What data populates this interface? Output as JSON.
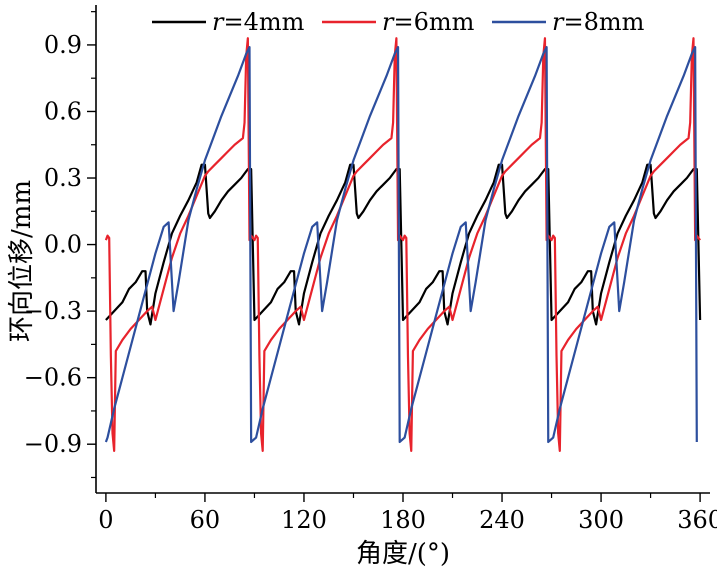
{
  "chart_data": {
    "type": "line",
    "xlabel": "角度/(°)",
    "ylabel": "环向位移/mm",
    "xlim": [
      -6,
      366
    ],
    "ylim": [
      -1.12,
      1.08
    ],
    "x_ticks": [
      0,
      60,
      120,
      180,
      240,
      300,
      360
    ],
    "x_tick_labels": [
      "0",
      "60",
      "120",
      "180",
      "240",
      "300",
      "360"
    ],
    "y_ticks": [
      -0.9,
      -0.6,
      -0.3,
      0.0,
      0.3,
      0.6,
      0.9
    ],
    "y_tick_labels": [
      "−0.9",
      "−0.6",
      "−0.3",
      "0.0",
      "0.3",
      "0.6",
      "0.9"
    ],
    "grid": false,
    "legend_position": "top",
    "period_deg": 90,
    "series": [
      {
        "name": "r=4mm",
        "legend_prefix": "r",
        "legend_suffix": "=4mm",
        "color": "#000000",
        "cycle": [
          [
            0,
            -0.34
          ],
          [
            5,
            -0.3
          ],
          [
            10,
            -0.26
          ],
          [
            14,
            -0.2
          ],
          [
            18,
            -0.17
          ],
          [
            22,
            -0.12
          ],
          [
            24,
            -0.12
          ],
          [
            25,
            -0.3
          ],
          [
            27,
            -0.36
          ],
          [
            30,
            -0.22
          ],
          [
            35,
            -0.08
          ],
          [
            40,
            0.05
          ],
          [
            45,
            0.13
          ],
          [
            50,
            0.2
          ],
          [
            55,
            0.28
          ],
          [
            58,
            0.36
          ],
          [
            60,
            0.36
          ],
          [
            61,
            0.25
          ],
          [
            62,
            0.14
          ],
          [
            63,
            0.12
          ],
          [
            66,
            0.15
          ],
          [
            70,
            0.2
          ],
          [
            74,
            0.24
          ],
          [
            78,
            0.27
          ],
          [
            82,
            0.3
          ],
          [
            86,
            0.34
          ],
          [
            88,
            0.34
          ],
          [
            90,
            -0.34
          ]
        ]
      },
      {
        "name": "r=6mm",
        "legend_prefix": "r",
        "legend_suffix": "=6mm",
        "color": "#e8232c",
        "cycle": [
          [
            0,
            0.02
          ],
          [
            1,
            0.04
          ],
          [
            2,
            0.03
          ],
          [
            3,
            -0.5
          ],
          [
            4,
            -0.85
          ],
          [
            5,
            -0.93
          ],
          [
            6,
            -0.48
          ],
          [
            10,
            -0.43
          ],
          [
            15,
            -0.38
          ],
          [
            20,
            -0.34
          ],
          [
            25,
            -0.3
          ],
          [
            28,
            -0.28
          ],
          [
            30,
            -0.34
          ],
          [
            35,
            -0.2
          ],
          [
            40,
            -0.06
          ],
          [
            45,
            0.05
          ],
          [
            50,
            0.13
          ],
          [
            55,
            0.22
          ],
          [
            60,
            0.31
          ],
          [
            62,
            0.33
          ],
          [
            66,
            0.36
          ],
          [
            70,
            0.39
          ],
          [
            74,
            0.42
          ],
          [
            78,
            0.45
          ],
          [
            83,
            0.48
          ],
          [
            84,
            0.55
          ],
          [
            85,
            0.85
          ],
          [
            86,
            0.93
          ],
          [
            87,
            0.02
          ],
          [
            88,
            0.04
          ],
          [
            90,
            0.02
          ]
        ]
      },
      {
        "name": "r=8mm",
        "legend_prefix": "r",
        "legend_suffix": "=8mm",
        "color": "#2d4f9e",
        "cycle": [
          [
            0,
            -0.89
          ],
          [
            1,
            -0.87
          ],
          [
            5,
            -0.74
          ],
          [
            10,
            -0.6
          ],
          [
            15,
            -0.46
          ],
          [
            20,
            -0.32
          ],
          [
            25,
            -0.18
          ],
          [
            30,
            -0.04
          ],
          [
            35,
            0.08
          ],
          [
            38,
            0.1
          ],
          [
            41,
            -0.3
          ],
          [
            44,
            -0.17
          ],
          [
            47,
            -0.03
          ],
          [
            50,
            0.11
          ],
          [
            55,
            0.25
          ],
          [
            60,
            0.38
          ],
          [
            65,
            0.48
          ],
          [
            70,
            0.58
          ],
          [
            75,
            0.67
          ],
          [
            80,
            0.76
          ],
          [
            85,
            0.86
          ],
          [
            87,
            0.89
          ],
          [
            88,
            -0.89
          ]
        ]
      }
    ]
  }
}
